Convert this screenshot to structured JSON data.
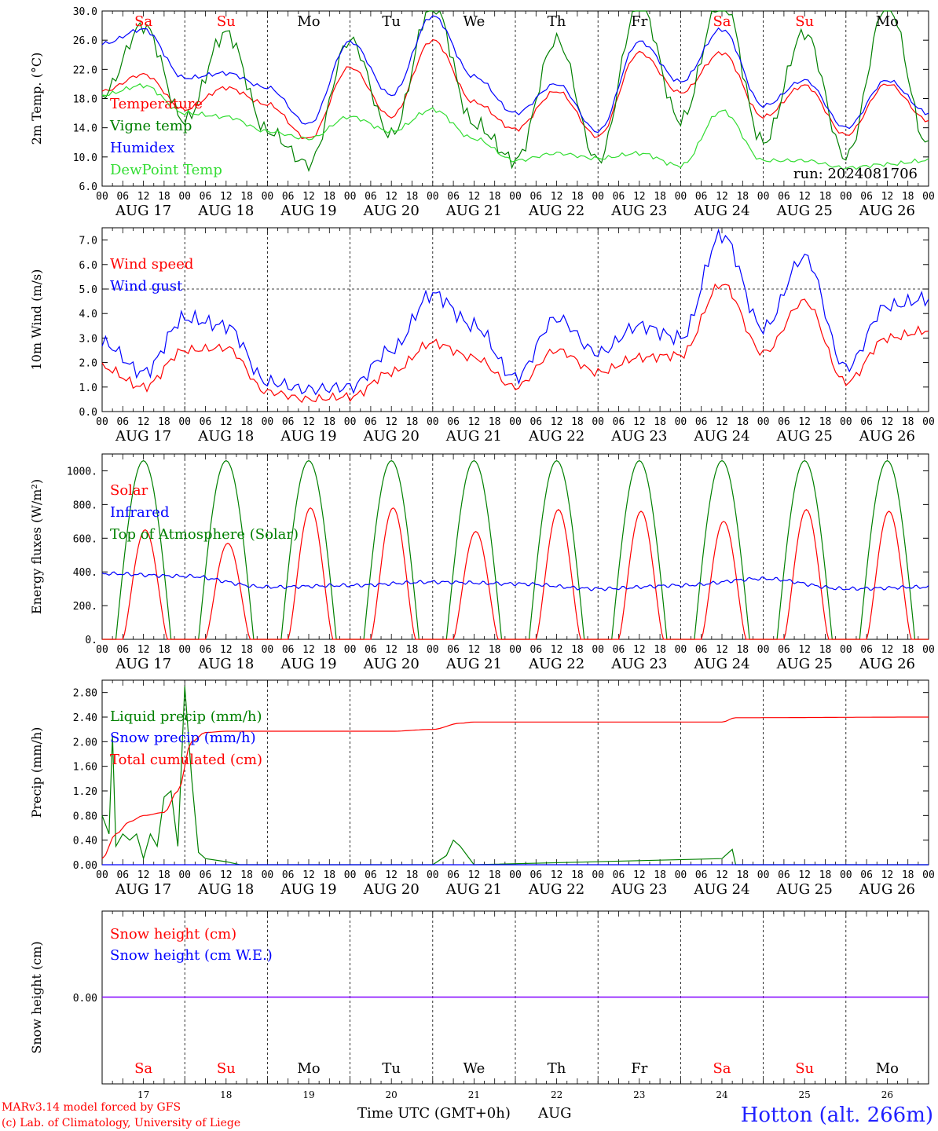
{
  "meta": {
    "model_line": "MARv3.14 model forced by GFS",
    "credit_line": "(c) Lab. of Climatology, University of Liege",
    "x_title": "Time UTC (GMT+0h)",
    "month": "AUG",
    "station": "Hotton (alt. 266m)"
  },
  "days": [
    {
      "weekday": "Sa",
      "weekend": true,
      "date": "AUG 17",
      "num": "17"
    },
    {
      "weekday": "Su",
      "weekend": true,
      "date": "AUG 18",
      "num": "18"
    },
    {
      "weekday": "Mo",
      "weekend": false,
      "date": "AUG 19",
      "num": "19"
    },
    {
      "weekday": "Tu",
      "weekend": false,
      "date": "AUG 20",
      "num": "20"
    },
    {
      "weekday": "We",
      "weekend": false,
      "date": "AUG 21",
      "num": "21"
    },
    {
      "weekday": "Th",
      "weekend": false,
      "date": "AUG 22",
      "num": "22"
    },
    {
      "weekday": "Fr",
      "weekend": false,
      "date": "AUG 23",
      "num": "23"
    },
    {
      "weekday": "Sa",
      "weekend": true,
      "date": "AUG 24",
      "num": "24"
    },
    {
      "weekday": "Su",
      "weekend": true,
      "date": "AUG 25",
      "num": "25"
    },
    {
      "weekday": "Mo",
      "weekend": false,
      "date": "AUG 26",
      "num": "26"
    }
  ],
  "hour_ticks": [
    "00",
    "06",
    "12",
    "18"
  ],
  "colors": {
    "red": "#ff0000",
    "green": "#008000",
    "blue": "#0000ff",
    "lightgreen": "#33dd33",
    "purple": "#8000ff",
    "weekend": "#ff0000",
    "weekday": "#000000"
  },
  "chart_data": [
    {
      "id": "temperature",
      "type": "line",
      "ylabel": "2m Temp. (°C)",
      "ylim": [
        6,
        30
      ],
      "yticks": [
        "6.0",
        "10.0",
        "14.0",
        "18.0",
        "22.0",
        "26.0",
        "30.0"
      ],
      "annotation": "run: 2024081706",
      "show_weekdays": true,
      "series": [
        {
          "name": "Temperature",
          "color": "red",
          "x": [
            0,
            12,
            24,
            36,
            48,
            60,
            72,
            84,
            96,
            108,
            120,
            132,
            144,
            156,
            168,
            180,
            192,
            204,
            216,
            228,
            240
          ],
          "y": [
            19.0,
            21.3,
            16.5,
            19.5,
            17.2,
            12.5,
            22.3,
            15.5,
            26.0,
            17.5,
            13.8,
            19.0,
            12.8,
            24.3,
            18.8,
            24.3,
            15.5,
            19.8,
            13.0,
            20.0,
            15.0
          ]
        },
        {
          "name": "Vigne temp",
          "color": "green",
          "x": [
            0,
            12,
            24,
            36,
            48,
            60,
            72,
            84,
            96,
            108,
            120,
            132,
            144,
            156,
            168,
            180,
            192,
            204,
            216,
            228,
            240
          ],
          "y": [
            18.5,
            28.0,
            15.0,
            27.0,
            13.5,
            9.0,
            26.0,
            13.0,
            31.0,
            14.5,
            9.5,
            26.0,
            9.5,
            31.0,
            15.0,
            32.0,
            12.0,
            27.0,
            10.0,
            31.0,
            11.5
          ]
        },
        {
          "name": "Humidex",
          "color": "blue",
          "x": [
            0,
            12,
            24,
            36,
            48,
            60,
            72,
            84,
            96,
            108,
            120,
            132,
            144,
            156,
            168,
            180,
            192,
            204,
            216,
            228,
            240
          ],
          "y": [
            25.5,
            27.5,
            20.8,
            21.5,
            19.5,
            14.5,
            25.8,
            18.5,
            29.3,
            21.0,
            16.0,
            20.0,
            13.5,
            25.8,
            20.3,
            27.5,
            17.0,
            20.5,
            14.0,
            20.5,
            16.0
          ]
        },
        {
          "name": "DewPoint Temp",
          "color": "lightgreen",
          "x": [
            0,
            12,
            24,
            36,
            48,
            60,
            72,
            84,
            96,
            108,
            120,
            132,
            144,
            156,
            168,
            180,
            192,
            204,
            216,
            228,
            240
          ],
          "y": [
            18.5,
            19.8,
            16.0,
            15.5,
            13.5,
            12.5,
            15.5,
            13.5,
            16.5,
            12.5,
            9.5,
            10.5,
            9.8,
            10.5,
            8.8,
            16.3,
            9.5,
            9.5,
            8.5,
            9.0,
            9.5
          ]
        }
      ]
    },
    {
      "id": "wind",
      "type": "line",
      "ylabel": "10m Wind (m/s)",
      "ylim": [
        0,
        7.5
      ],
      "yticks": [
        "0.0",
        "1.0",
        "2.0",
        "3.0",
        "4.0",
        "5.0",
        "6.0",
        "7.0"
      ],
      "reference_line": 5.0,
      "series": [
        {
          "name": "Wind speed",
          "color": "red",
          "x": [
            0,
            12,
            24,
            36,
            48,
            60,
            72,
            84,
            96,
            108,
            120,
            132,
            144,
            156,
            168,
            180,
            192,
            204,
            216,
            228,
            240
          ],
          "y": [
            1.8,
            1.0,
            2.5,
            2.6,
            0.8,
            0.5,
            0.6,
            1.6,
            2.8,
            2.2,
            1.0,
            2.5,
            1.6,
            2.2,
            2.3,
            5.2,
            2.4,
            4.5,
            1.2,
            3.0,
            3.3
          ]
        },
        {
          "name": "Wind gust",
          "color": "blue",
          "x": [
            0,
            12,
            24,
            36,
            48,
            60,
            72,
            84,
            96,
            108,
            120,
            132,
            144,
            156,
            168,
            180,
            192,
            204,
            216,
            228,
            240
          ],
          "y": [
            2.8,
            1.6,
            3.8,
            3.5,
            1.2,
            0.9,
            1.0,
            2.5,
            4.8,
            3.5,
            1.4,
            3.8,
            2.4,
            3.5,
            3.0,
            7.2,
            3.4,
            6.3,
            1.8,
            4.3,
            4.6
          ]
        }
      ]
    },
    {
      "id": "energy",
      "type": "line",
      "ylabel": "Energy fluxes (W/m²)",
      "ylim": [
        0,
        1100
      ],
      "yticks": [
        "0.",
        "200.",
        "400.",
        "600.",
        "800.",
        "1000."
      ],
      "series": [
        {
          "name": "Solar",
          "color": "red",
          "peaks": [
            650,
            570,
            780,
            780,
            640,
            770,
            760,
            700,
            770,
            760
          ]
        },
        {
          "name": "Infrared",
          "color": "blue",
          "x": [
            0,
            24,
            48,
            72,
            96,
            120,
            144,
            168,
            192,
            216,
            240
          ],
          "y": [
            390,
            375,
            310,
            320,
            340,
            330,
            300,
            320,
            360,
            300,
            310
          ]
        },
        {
          "name": "Top of Atmosphere (Solar)",
          "color": "green",
          "peak": 1060
        }
      ]
    },
    {
      "id": "precip",
      "type": "line",
      "ylabel": "Precip (mm/h)",
      "ylim": [
        0,
        3.0
      ],
      "yticks": [
        "0.00",
        "0.40",
        "0.80",
        "1.20",
        "1.60",
        "2.00",
        "2.40",
        "2.80"
      ],
      "series": [
        {
          "name": "Liquid precip (mm/h)",
          "color": "green",
          "x": [
            0,
            2,
            3,
            4,
            6,
            8,
            10,
            12,
            14,
            16,
            18,
            20,
            22,
            24,
            26,
            28,
            30,
            36,
            40,
            96,
            100,
            102,
            104,
            108,
            180,
            183,
            184,
            220,
            240
          ],
          "y": [
            0.8,
            0.5,
            2.1,
            0.3,
            0.5,
            0.4,
            0.5,
            0.1,
            0.5,
            0.3,
            1.1,
            1.2,
            0.3,
            2.9,
            1.4,
            0.2,
            0.1,
            0.05,
            0.0,
            0.0,
            0.15,
            0.4,
            0.3,
            0.0,
            0.1,
            0.25,
            0.0,
            0.0,
            0.0
          ]
        },
        {
          "name": "Snow precip (mm/h)",
          "color": "blue",
          "x": [
            0,
            240
          ],
          "y": [
            0.0,
            0.0
          ]
        },
        {
          "name": "Total cumulated (cm)",
          "color": "red",
          "x": [
            0,
            4,
            8,
            12,
            18,
            22,
            26,
            30,
            36,
            48,
            72,
            84,
            96,
            104,
            108,
            168,
            180,
            184,
            240
          ],
          "y": [
            0.1,
            0.5,
            0.7,
            0.8,
            0.85,
            1.2,
            2.0,
            2.15,
            2.17,
            2.17,
            2.17,
            2.17,
            2.2,
            2.3,
            2.32,
            2.32,
            2.32,
            2.39,
            2.4
          ]
        }
      ]
    },
    {
      "id": "snow",
      "type": "line",
      "ylabel": "Snow height (cm)",
      "yticks": [
        "0.00"
      ],
      "show_weekdays": true,
      "series": [
        {
          "name": "Snow height (cm)",
          "color": "red",
          "x": [
            0,
            240
          ],
          "y": [
            0,
            0
          ]
        },
        {
          "name": "Snow height (cm W.E.)",
          "color": "blue",
          "x": [
            0,
            240
          ],
          "y": [
            0,
            0
          ]
        }
      ]
    }
  ]
}
